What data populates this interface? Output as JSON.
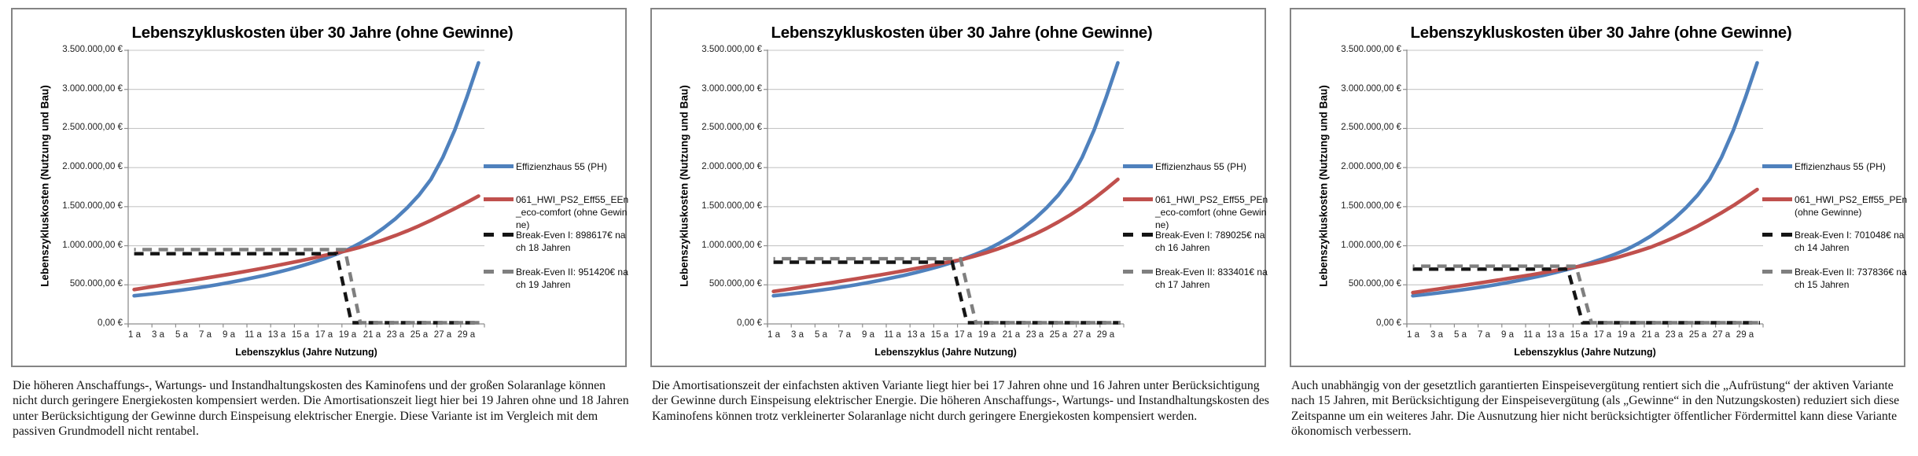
{
  "colors": {
    "blue": "#4F81BD",
    "red": "#C0504D",
    "black": "#151515",
    "gray": "#7F7F7F",
    "gridline": "#C6C6C6",
    "axis": "#8E8E8E",
    "frame_border": "#848484"
  },
  "chart_data": [
    {
      "type": "line",
      "title": "Lebenszykluskosten über 30 Jahre (ohne Gewinne)",
      "ylabel": "Lebenszykluskosten (Nutzung und Bau)",
      "xlabel": "Lebenszyklus (Jahre Nutzung)",
      "ylim": [
        0,
        3500000
      ],
      "xlim": [
        1,
        30
      ],
      "grid": "horizontal",
      "legend_position": "right",
      "y_tick_labels": [
        "3.500.000,00 €",
        "3.000.000,00 €",
        "2.500.000,00 €",
        "2.000.000,00 €",
        "1.500.000,00 €",
        "1.000.000,00 €",
        "500.000,00 €",
        "0,00 €"
      ],
      "x_tick_labels": [
        "1 a",
        "3 a",
        "5 a",
        "7 a",
        "9 a",
        "11 a",
        "13 a",
        "15 a",
        "17 a",
        "19 a",
        "21 a",
        "23 a",
        "25 a",
        "27 a",
        "29 a"
      ],
      "series": [
        {
          "name": "Effizienzhaus 55 (PH)",
          "color": "blue",
          "style": "solid",
          "values": [
            360000,
            376000,
            393000,
            412000,
            432000,
            454000,
            477000,
            502000,
            529000,
            558000,
            589000,
            622000,
            658000,
            696000,
            738000,
            783000,
            833000,
            890000,
            951000,
            1030000,
            1120000,
            1225000,
            1345000,
            1485000,
            1650000,
            1850000,
            2130000,
            2480000,
            2890000,
            3340000
          ]
        },
        {
          "name": "061_HWI_PS2_Eff55_EEn_eco-comfort (ohne Gewinne)",
          "color": "red",
          "style": "solid",
          "values": [
            440000,
            464000,
            488000,
            512000,
            536000,
            560000,
            585000,
            610000,
            636000,
            662000,
            689000,
            717000,
            746000,
            776000,
            807000,
            840000,
            875000,
            905000,
            940000,
            980000,
            1025000,
            1075000,
            1130000,
            1190000,
            1255000,
            1325000,
            1400000,
            1475000,
            1553000,
            1635000
          ]
        },
        {
          "name": "Break-Even I: 898617€ nach 18 Jahren",
          "color": "black",
          "style": "dashed",
          "break_even_value": 898617,
          "break_even_year": 18
        },
        {
          "name": "Break-Even II: 951420€ nach 19 Jahren",
          "color": "gray",
          "style": "dashed",
          "break_even_value": 951420,
          "break_even_year": 19
        }
      ],
      "caption": "Die höheren Anschaffungs-, Wartungs- und Instandhaltungskosten des Kaminofens und der großen Solaranlage können nicht durch geringere Energiekosten kompensiert werden. Die Amortisationszeit liegt hier bei 19 Jahren ohne und 18 Jahren unter Berücksichtigung der Gewinne durch Einspeisung elektrischer Energie. Diese Variante ist im Vergleich mit dem passiven Grundmodell nicht rentabel."
    },
    {
      "type": "line",
      "title": "Lebenszykluskosten über 30 Jahre (ohne Gewinne)",
      "ylabel": "Lebenszykluskosten (Nutzung und Bau)",
      "xlabel": "Lebenszyklus (Jahre Nutzung)",
      "ylim": [
        0,
        3500000
      ],
      "xlim": [
        1,
        30
      ],
      "grid": "horizontal",
      "legend_position": "right",
      "y_tick_labels": [
        "3.500.000,00 €",
        "3.000.000,00 €",
        "2.500.000,00 €",
        "2.000.000,00 €",
        "1.500.000,00 €",
        "1.000.000,00 €",
        "500.000,00 €",
        "0,00 €"
      ],
      "x_tick_labels": [
        "1 a",
        "3 a",
        "5 a",
        "7 a",
        "9 a",
        "11 a",
        "13 a",
        "15 a",
        "17 a",
        "19 a",
        "21 a",
        "23 a",
        "25 a",
        "27 a",
        "29 a"
      ],
      "series": [
        {
          "name": "Effizienzhaus 55 (PH)",
          "color": "blue",
          "style": "solid",
          "values": [
            360000,
            376000,
            393000,
            412000,
            432000,
            454000,
            477000,
            502000,
            529000,
            558000,
            589000,
            622000,
            658000,
            696000,
            738000,
            783000,
            833000,
            890000,
            951000,
            1030000,
            1120000,
            1225000,
            1345000,
            1485000,
            1650000,
            1850000,
            2130000,
            2480000,
            2890000,
            3340000
          ]
        },
        {
          "name": "061_HWI_PS2_Eff55_PEn_eco-comfort (ohne Gewinne)",
          "color": "red",
          "style": "solid",
          "values": [
            415000,
            438000,
            461000,
            484000,
            507000,
            530000,
            554000,
            578000,
            603000,
            628000,
            654000,
            681000,
            709000,
            738000,
            768000,
            800000,
            828000,
            870000,
            915000,
            965000,
            1020000,
            1080000,
            1148000,
            1222000,
            1305000,
            1395000,
            1495000,
            1605000,
            1723000,
            1850000
          ]
        },
        {
          "name": "Break-Even I: 789025€ nach 16 Jahren",
          "color": "black",
          "style": "dashed",
          "break_even_value": 789025,
          "break_even_year": 16
        },
        {
          "name": "Break-Even II: 833401€ nach 17 Jahren",
          "color": "gray",
          "style": "dashed",
          "break_even_value": 833401,
          "break_even_year": 17
        }
      ],
      "caption": "Die Amortisationszeit der einfachsten aktiven Variante liegt hier bei 17 Jahren ohne und 16 Jahren unter Berücksichtigung der Gewinne durch Einspeisung elektrischer Energie. Die höheren Anschaffungs-, Wartungs- und Instandhaltungskosten des Kaminofens können trotz verkleinerter Solaranlage nicht durch geringere Energiekosten kompensiert werden."
    },
    {
      "type": "line",
      "title": "Lebenszykluskosten über 30 Jahre (ohne Gewinne)",
      "ylabel": "Lebenszykluskosten (Nutzung und Bau)",
      "xlabel": "Lebenszyklus (Jahre Nutzung)",
      "ylim": [
        0,
        3500000
      ],
      "xlim": [
        1,
        30
      ],
      "grid": "horizontal",
      "legend_position": "right",
      "y_tick_labels": [
        "3.500.000,00 €",
        "3.000.000,00 €",
        "2.500.000,00 €",
        "2.000.000,00 €",
        "1.500.000,00 €",
        "1.000.000,00 €",
        "500.000,00 €",
        "0,00 €"
      ],
      "x_tick_labels": [
        "1 a",
        "3 a",
        "5 a",
        "7 a",
        "9 a",
        "11 a",
        "13 a",
        "15 a",
        "17 a",
        "19 a",
        "21 a",
        "23 a",
        "25 a",
        "27 a",
        "29 a"
      ],
      "series": [
        {
          "name": "Effizienzhaus 55 (PH)",
          "color": "blue",
          "style": "solid",
          "values": [
            360000,
            376000,
            393000,
            412000,
            432000,
            454000,
            477000,
            502000,
            529000,
            558000,
            589000,
            622000,
            658000,
            696000,
            738000,
            783000,
            833000,
            890000,
            951000,
            1030000,
            1120000,
            1225000,
            1345000,
            1485000,
            1650000,
            1850000,
            2130000,
            2480000,
            2890000,
            3340000
          ]
        },
        {
          "name": "061_HWI_PS2_Eff55_PEn (ohne Gewinne)",
          "color": "red",
          "style": "solid",
          "values": [
            400000,
            422000,
            444000,
            466000,
            488000,
            510000,
            533000,
            556000,
            580000,
            604000,
            629000,
            655000,
            682000,
            710000,
            735000,
            765000,
            800000,
            840000,
            885000,
            930000,
            980000,
            1040000,
            1105000,
            1175000,
            1252000,
            1335000,
            1422000,
            1515000,
            1615000,
            1720000
          ]
        },
        {
          "name": "Break-Even I: 701048€ nach 14 Jahren",
          "color": "black",
          "style": "dashed",
          "break_even_value": 701048,
          "break_even_year": 14
        },
        {
          "name": "Break-Even II: 737836€ nach 15 Jahren",
          "color": "gray",
          "style": "dashed",
          "break_even_value": 737836,
          "break_even_year": 15
        }
      ],
      "caption": "Auch unabhängig von der gesetztlich garantierten Einspeisevergütung rentiert sich die „Aufrüstung“ der aktiven Variante nach 15 Jahren, mit Berücksichtigung der Einspeisevergütung (als „Gewinne“ in den Nutzungskosten) reduziert sich diese Zeitspanne um ein weiteres Jahr. Die Ausnutzung hier nicht berücksichtigter öffentlicher Fördermittel kann diese Variante ökonomisch verbessern."
    }
  ]
}
